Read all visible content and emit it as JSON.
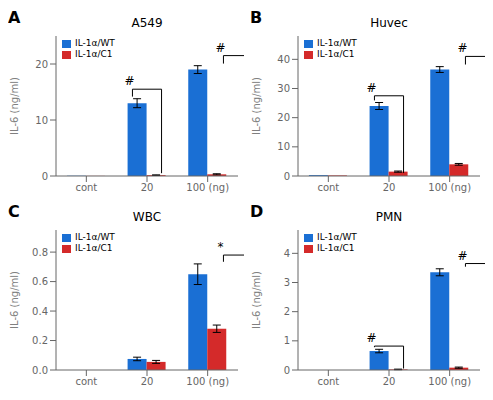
{
  "chart_data": [
    {
      "type": "bar",
      "label": "A",
      "title": "A549",
      "y_label": "IL-6 (ng/ml)",
      "categories": [
        "cont",
        "20",
        "100 (ng)"
      ],
      "series": [
        {
          "name": "IL-1α/WT",
          "color": "#1a6fd4",
          "values": [
            0.05,
            13.0,
            19.0
          ],
          "errors": [
            0.0,
            0.8,
            0.7
          ]
        },
        {
          "name": "IL-1α/C1",
          "color": "#d42a2a",
          "values": [
            0.02,
            0.15,
            0.3
          ],
          "errors": [
            0.0,
            0.05,
            0.1
          ]
        }
      ],
      "ylim": [
        0,
        25
      ],
      "yticks": [
        0,
        10,
        20
      ],
      "legend": "upper left",
      "grid": false,
      "annotations": [
        {
          "text": "#",
          "category": "20",
          "y_top": 15.5,
          "y_bot": 0.5
        },
        {
          "text": "#",
          "category": "100 (ng)",
          "y_top": 21.5,
          "y_bot": 0.6
        }
      ]
    },
    {
      "type": "bar",
      "label": "B",
      "title": "Huvec",
      "y_label": "IL-6 (ng/ml)",
      "categories": [
        "cont",
        "20",
        "100 (ng)"
      ],
      "series": [
        {
          "name": "IL-1α/WT",
          "color": "#1a6fd4",
          "values": [
            0.3,
            24.0,
            36.5
          ],
          "errors": [
            0.0,
            1.2,
            1.0
          ]
        },
        {
          "name": "IL-1α/C1",
          "color": "#d42a2a",
          "values": [
            0.2,
            1.5,
            4.0
          ],
          "errors": [
            0.0,
            0.2,
            0.3
          ]
        }
      ],
      "ylim": [
        0,
        48
      ],
      "yticks": [
        0,
        10,
        20,
        30,
        40
      ],
      "legend": "upper left",
      "grid": false,
      "annotations": [
        {
          "text": "#",
          "category": "20",
          "y_top": 27.5,
          "y_bot": 1.0
        },
        {
          "text": "#",
          "category": "100 (ng)",
          "y_top": 41.0,
          "y_bot": 4.5
        }
      ]
    },
    {
      "type": "bar",
      "label": "C",
      "title": "WBC",
      "y_label": "IL-6 (ng/ml)",
      "categories": [
        "cont",
        "20",
        "100 (ng)"
      ],
      "series": [
        {
          "name": "IL-1α/WT",
          "color": "#1a6fd4",
          "values": [
            0.0,
            0.075,
            0.65
          ],
          "errors": [
            0.0,
            0.012,
            0.07
          ]
        },
        {
          "name": "IL-1α/C1",
          "color": "#d42a2a",
          "values": [
            0.0,
            0.055,
            0.28
          ],
          "errors": [
            0.0,
            0.01,
            0.025
          ]
        }
      ],
      "ylim": [
        0,
        0.95
      ],
      "yticks": [
        {
          "value": 0,
          "label": "0.0"
        },
        0.2,
        0.4,
        0.6,
        0.8
      ],
      "legend": "upper left",
      "grid": false,
      "annotations": [
        {
          "text": "*",
          "category": "100 (ng)",
          "y_top": 0.78,
          "y_bot": 0.29
        }
      ]
    },
    {
      "type": "bar",
      "label": "D",
      "title": "PMN",
      "y_label": "IL-6 (ng/ml)",
      "categories": [
        "cont",
        "20",
        "100 (ng)"
      ],
      "series": [
        {
          "name": "IL-1α/WT",
          "color": "#1a6fd4",
          "values": [
            0.0,
            0.65,
            3.35
          ],
          "errors": [
            0.0,
            0.06,
            0.12
          ]
        },
        {
          "name": "IL-1α/C1",
          "color": "#d42a2a",
          "values": [
            0.0,
            0.02,
            0.08
          ],
          "errors": [
            0.0,
            0.01,
            0.02
          ]
        }
      ],
      "ylim": [
        0,
        4.8
      ],
      "yticks": [
        0,
        1,
        2,
        3,
        4
      ],
      "legend": "upper left",
      "grid": false,
      "annotations": [
        {
          "text": "#",
          "category": "20",
          "y_top": 0.82,
          "y_bot": 0.05
        },
        {
          "text": "#",
          "category": "100 (ng)",
          "y_top": 3.65,
          "y_bot": 0.12
        }
      ]
    }
  ]
}
